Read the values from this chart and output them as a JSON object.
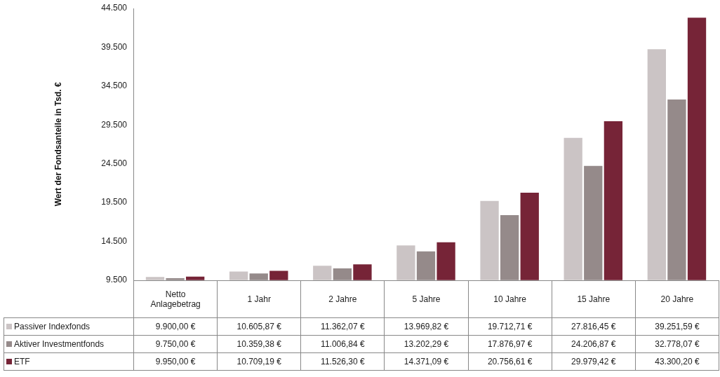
{
  "chart_data": {
    "type": "bar",
    "ylabel": "Wert der Fondsanteile in Tsd. €",
    "categories": [
      "Netto Anlagebetrag",
      "1 Jahr",
      "2 Jahre",
      "5 Jahre",
      "10 Jahre",
      "15 Jahre",
      "20 Jahre"
    ],
    "series": [
      {
        "name": "Passiver Indexfonds",
        "color": "#cbc4c5",
        "values": [
          9900.0,
          10605.87,
          11362.07,
          13969.82,
          19712.71,
          27816.45,
          39251.59
        ],
        "value_labels": [
          "9.900,00 €",
          "10.605,87 €",
          "11.362,07 €",
          "13.969,82 €",
          "19.712,71 €",
          "27.816,45 €",
          "39.251,59 €"
        ]
      },
      {
        "name": "Aktiver Investmentfonds",
        "color": "#958a8a",
        "values": [
          9750.0,
          10359.38,
          11006.84,
          13202.29,
          17876.97,
          24206.87,
          32778.07
        ],
        "value_labels": [
          "9.750,00 €",
          "10.359,38 €",
          "11.006,84 €",
          "13.202,29 €",
          "17.876,97 €",
          "24.206,87 €",
          "32.778,07 €"
        ]
      },
      {
        "name": "ETF",
        "color": "#762437",
        "values": [
          9950.0,
          10709.19,
          11526.3,
          14371.09,
          20756.61,
          29979.42,
          43300.2
        ],
        "value_labels": [
          "9.950,00 €",
          "10.709,19 €",
          "11.526,30 €",
          "14.371,09 €",
          "20.756,61 €",
          "29.979,42 €",
          "43.300,20 €"
        ]
      }
    ],
    "ylim": [
      9500,
      44500
    ],
    "yticks": [
      {
        "value": 9500,
        "label": "9.500"
      },
      {
        "value": 14500,
        "label": "14.500"
      },
      {
        "value": 19500,
        "label": "19.500"
      },
      {
        "value": 24500,
        "label": "24.500"
      },
      {
        "value": 29500,
        "label": "29.500"
      },
      {
        "value": 34500,
        "label": "34.500"
      },
      {
        "value": 39500,
        "label": "39.500"
      },
      {
        "value": 44500,
        "label": "44.500"
      }
    ],
    "grid": false,
    "legend": "bottom"
  }
}
